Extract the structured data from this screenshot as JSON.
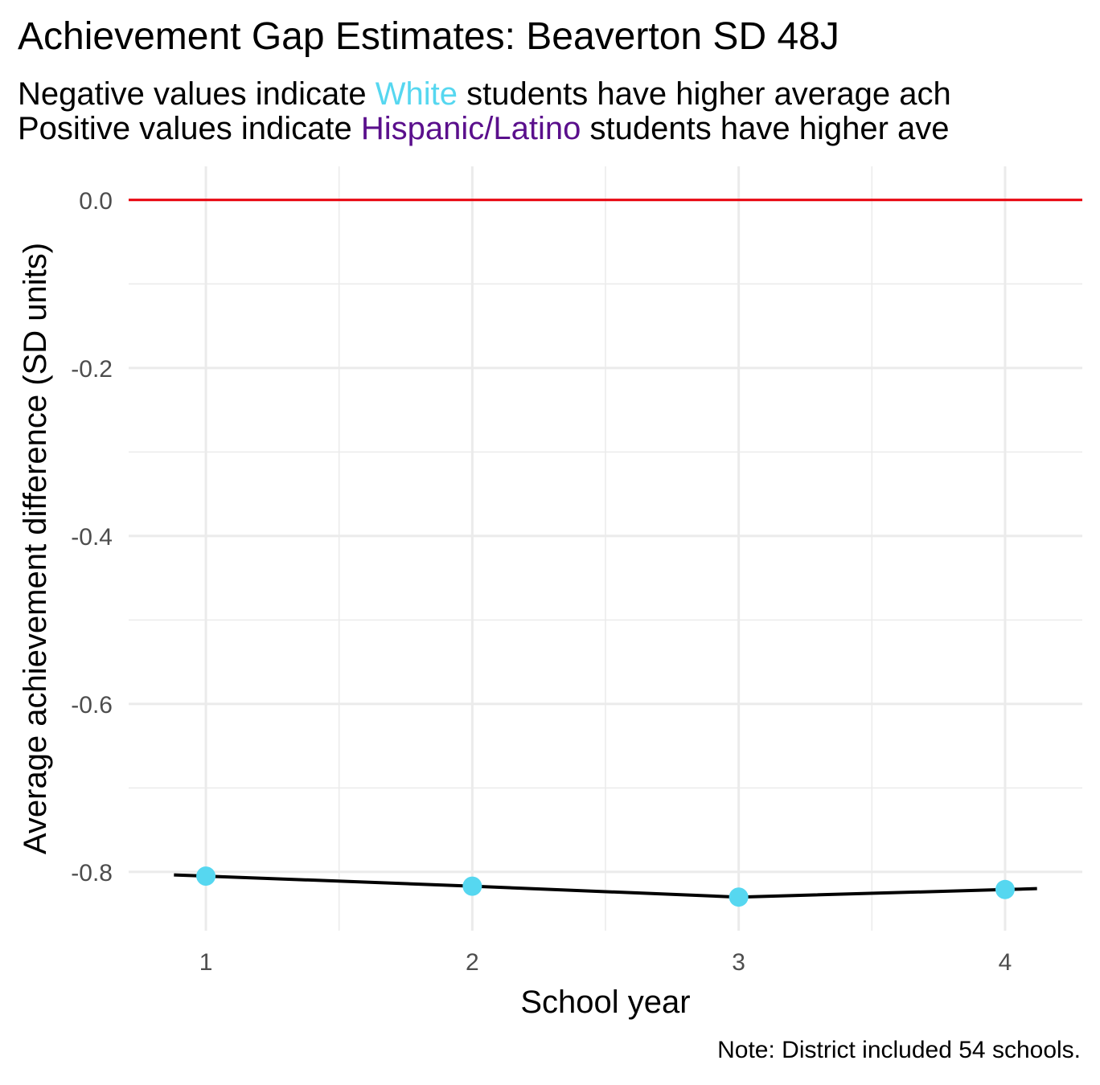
{
  "title": "Achievement Gap Estimates: Beaverton SD 48J",
  "subtitle": {
    "line1": {
      "pre": "Negative values indicate ",
      "group": "White",
      "post": " students have higher average ach",
      "group_color": "#56D7F0"
    },
    "line2": {
      "pre": "Positive values indicate ",
      "group": "Hispanic/Latino",
      "post": " students have higher ave",
      "group_color": "#5A0F8C"
    }
  },
  "caption": "Note: District included 54 schools.",
  "colors": {
    "reference_line": "#E8000B",
    "point": "#56D7F0",
    "line": "#000000",
    "grid": "#EBEBEB"
  },
  "chart_data": {
    "type": "line",
    "xlabel": "School year",
    "ylabel": "Average achievement difference (SD units)",
    "x": [
      1,
      2,
      3,
      4
    ],
    "x_ticks": [
      "1",
      "2",
      "3",
      "4"
    ],
    "y_ticks": [
      "0.0",
      "-0.2",
      "-0.4",
      "-0.6",
      "-0.8"
    ],
    "xlim": [
      0.71,
      4.29
    ],
    "ylim": [
      -0.87,
      0.04
    ],
    "reference_line_y": 0,
    "series": [
      {
        "values": [
          -0.805,
          -0.817,
          -0.83,
          -0.821
        ]
      }
    ],
    "grid": true
  }
}
